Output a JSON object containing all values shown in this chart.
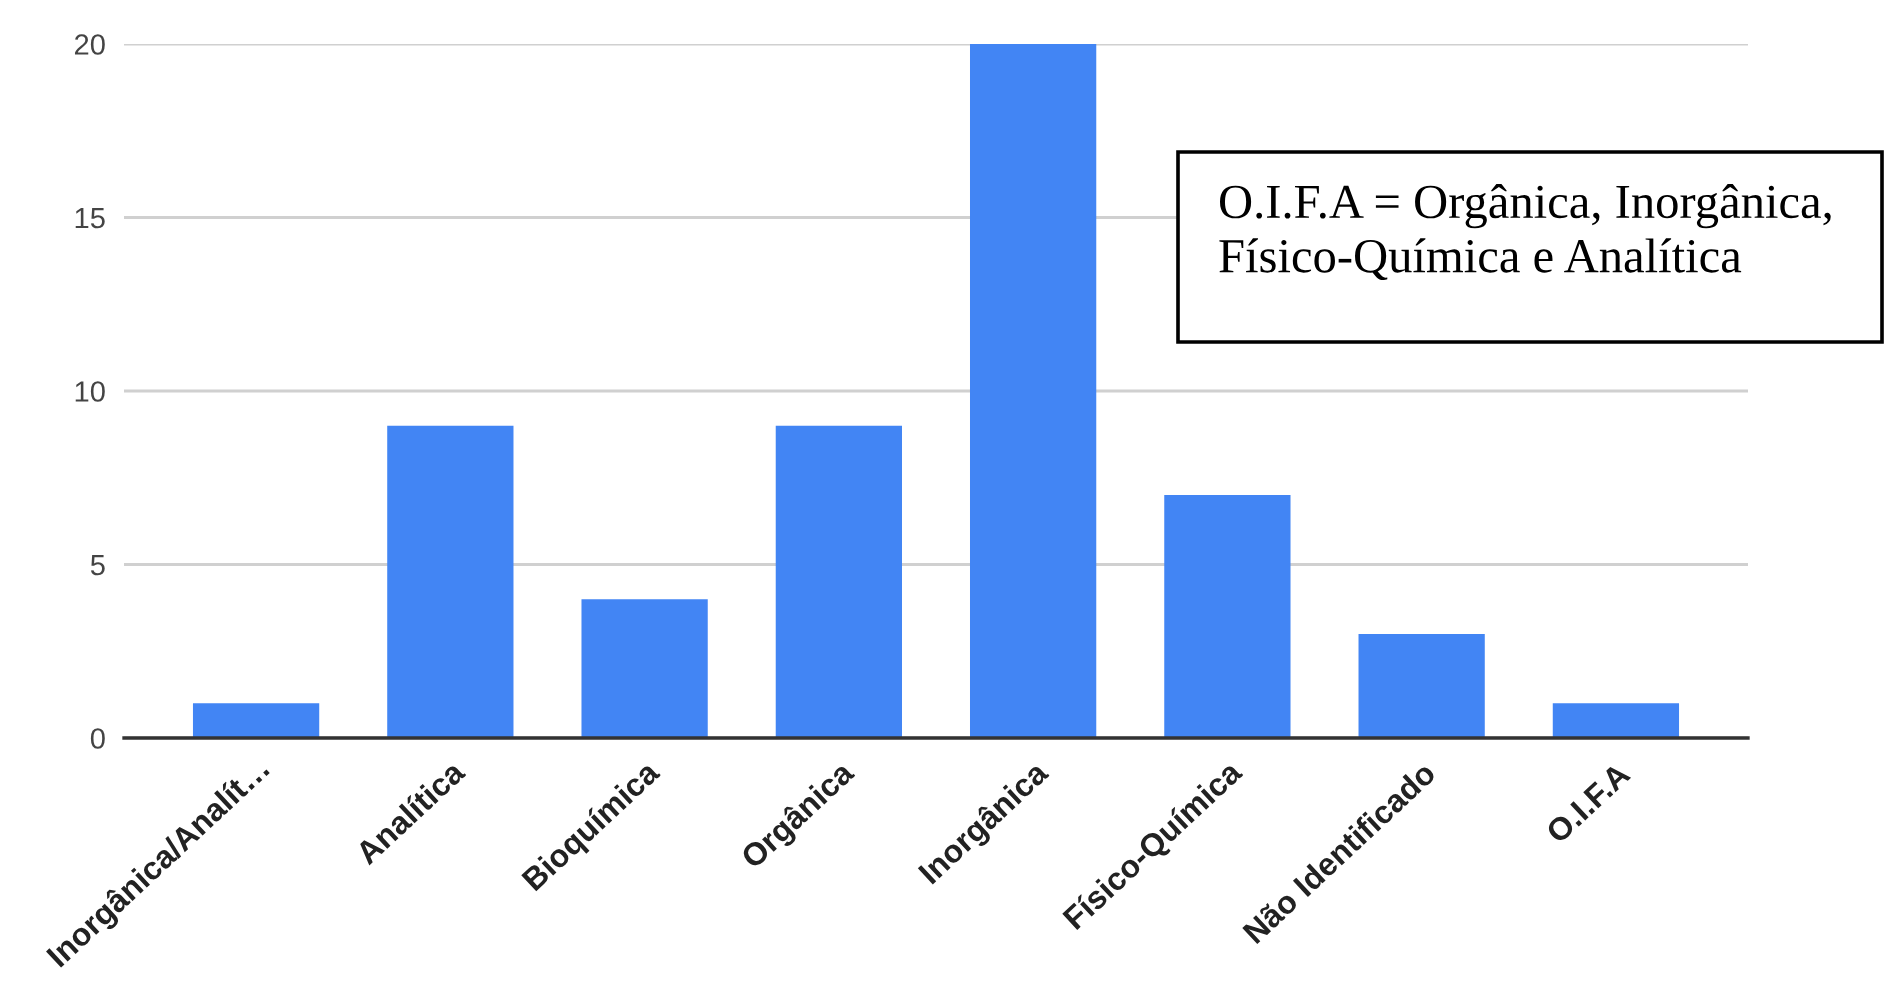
{
  "chart_data": {
    "type": "bar",
    "categories": [
      "Inorgânica/Analít…",
      "Analítica",
      "Bioquímica",
      "Orgânica",
      "Inorgânica",
      "Físico-Química",
      "Não Identificado",
      "O.I.F.A"
    ],
    "values": [
      1,
      9,
      4,
      9,
      20,
      7,
      3,
      1
    ],
    "color": "#4285f4",
    "ylim": [
      0,
      20
    ],
    "yticks": [
      0,
      5,
      10,
      15,
      20
    ],
    "grid": "y",
    "legend": false,
    "annotations": [
      "O.I.F.A = Orgânica, Inorgânica,\nFísico-Química e Analítica"
    ]
  }
}
